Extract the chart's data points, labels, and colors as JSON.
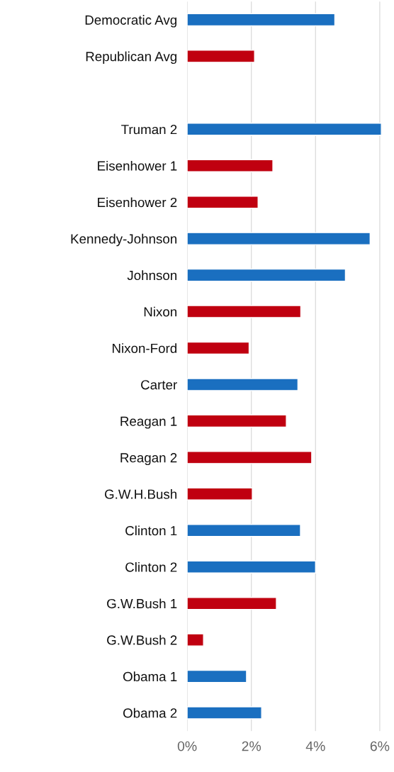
{
  "chart_data": {
    "type": "bar",
    "orientation": "horizontal",
    "categories": [
      "Democratic Avg",
      "Republican Avg",
      null,
      "Truman 2",
      "Eisenhower 1",
      "Eisenhower 2",
      "Kennedy-Johnson",
      "Johnson",
      "Nixon",
      "Nixon-Ford",
      "Carter",
      "Reagan 1",
      "Reagan 2",
      "G.W.H.Bush",
      "Clinton 1",
      "Clinton 2",
      "G.W.Bush 1",
      "G.W.Bush 2",
      "Obama 1",
      "Obama 2"
    ],
    "values": [
      4.6,
      2.1,
      null,
      6.05,
      2.67,
      2.21,
      5.7,
      4.93,
      3.54,
      1.93,
      3.45,
      3.09,
      3.88,
      2.03,
      3.53,
      4.0,
      2.78,
      0.51,
      1.85,
      2.32
    ],
    "colors": [
      "#1a6fc0",
      "#c00010",
      null,
      "#1a6fc0",
      "#c00010",
      "#c00010",
      "#1a6fc0",
      "#1a6fc0",
      "#c00010",
      "#c00010",
      "#1a6fc0",
      "#c00010",
      "#c00010",
      "#c00010",
      "#1a6fc0",
      "#1a6fc0",
      "#c00010",
      "#c00010",
      "#1a6fc0",
      "#1a6fc0"
    ],
    "xlim": [
      0,
      6.1
    ],
    "xticks": [
      {
        "value": 0,
        "label": "0%"
      },
      {
        "value": 2,
        "label": "2%"
      },
      {
        "value": 4,
        "label": "4%"
      },
      {
        "value": 6,
        "label": "6%"
      }
    ],
    "grid": "x"
  }
}
